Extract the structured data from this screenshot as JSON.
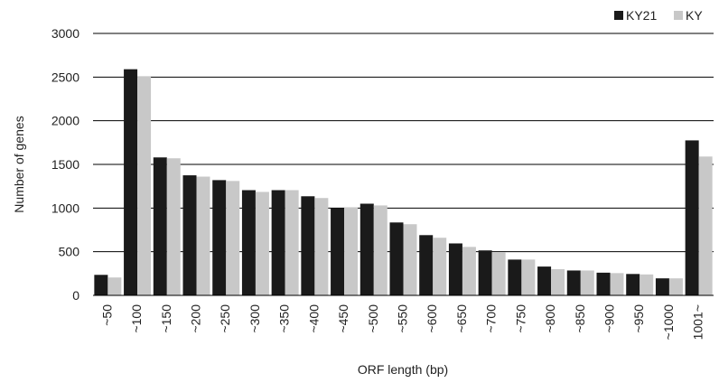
{
  "chart_data": {
    "type": "bar",
    "title": "",
    "xlabel": "ORF length (bp)",
    "ylabel": "Number of genes",
    "ylim": [
      0,
      3000
    ],
    "yticks": [
      0,
      500,
      1000,
      1500,
      2000,
      2500,
      3000
    ],
    "grid": "horizontal",
    "legend_position": "top-right",
    "categories": [
      "~50",
      "~100",
      "~150",
      "~200",
      "~250",
      "~300",
      "~350",
      "~400",
      "~450",
      "~500",
      "~550",
      "~600",
      "~650",
      "~700",
      "~750",
      "~800",
      "~850",
      "~900",
      "~950",
      "~1000",
      "1001~"
    ],
    "series": [
      {
        "name": "KY21",
        "color": "#1a1a1a",
        "values": [
          235,
          2590,
          1580,
          1375,
          1320,
          1205,
          1205,
          1135,
          1000,
          1050,
          835,
          690,
          595,
          515,
          410,
          330,
          285,
          260,
          245,
          195,
          1775
        ]
      },
      {
        "name": "KY",
        "color": "#c8c8c8",
        "values": [
          205,
          2510,
          1570,
          1360,
          1310,
          1185,
          1205,
          1115,
          1005,
          1030,
          815,
          660,
          555,
          495,
          410,
          300,
          285,
          255,
          240,
          195,
          1590
        ]
      }
    ]
  }
}
